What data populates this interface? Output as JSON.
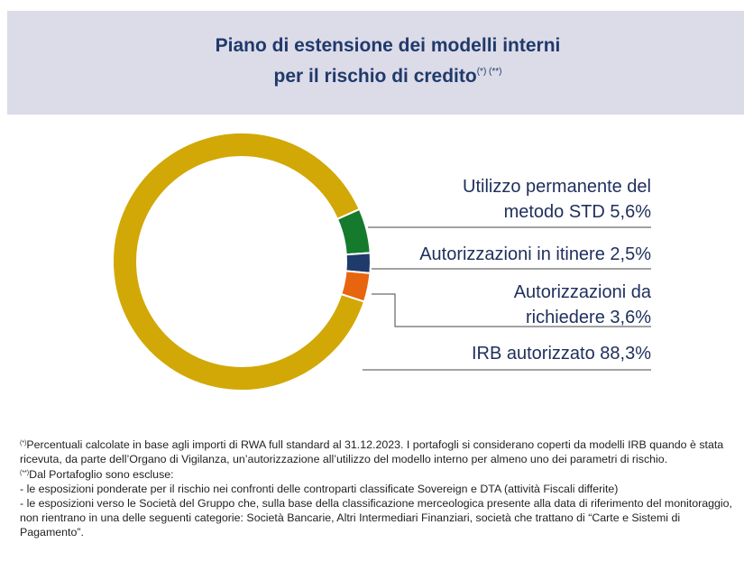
{
  "chart_data": {
    "type": "donut",
    "title": "Piano di estensione dei modelli interni per il rischio di credito",
    "title_note": "(*) (**)",
    "categories": [
      "Utilizzo permanente del metodo STD",
      "Autorizzazioni in itinere",
      "Autorizzazioni da richiedere",
      "IRB autorizzato"
    ],
    "values": [
      5.6,
      2.5,
      3.6,
      88.3
    ],
    "value_labels": [
      "5,6%",
      "2,5%",
      "3,6%",
      "88,3%"
    ],
    "colors": [
      "#167a2c",
      "#1f3a6b",
      "#e8650f",
      "#d2a807"
    ]
  },
  "notes": [
    {
      "marker": "(*)",
      "text": "Percentuali calcolate in base agli importi di RWA full standard al 31.12.2023. I portafogli si considerano coperti da modelli IRB quando è stata ricevuta, da parte dell’Organo di Vigilanza, un’autorizzazione all’utilizzo del modello interno per almeno uno dei parametri di rischio."
    },
    {
      "marker": "(**)",
      "text": "Dal Portafoglio sono escluse:"
    },
    {
      "text": "- le esposizioni ponderate per il rischio  nei confronti delle controparti classificate Sovereign e DTA (attività Fiscali differite)"
    },
    {
      "text": "- le esposizioni verso le Società del Gruppo che, sulla base della classificazione merceologica presente alla data di riferimento del monitoraggio, non rientrano in una delle seguenti categorie: Società Bancarie, Altri Intermediari Finanziari, società che trattano di “Carte e Sistemi di Pagamento”."
    }
  ]
}
